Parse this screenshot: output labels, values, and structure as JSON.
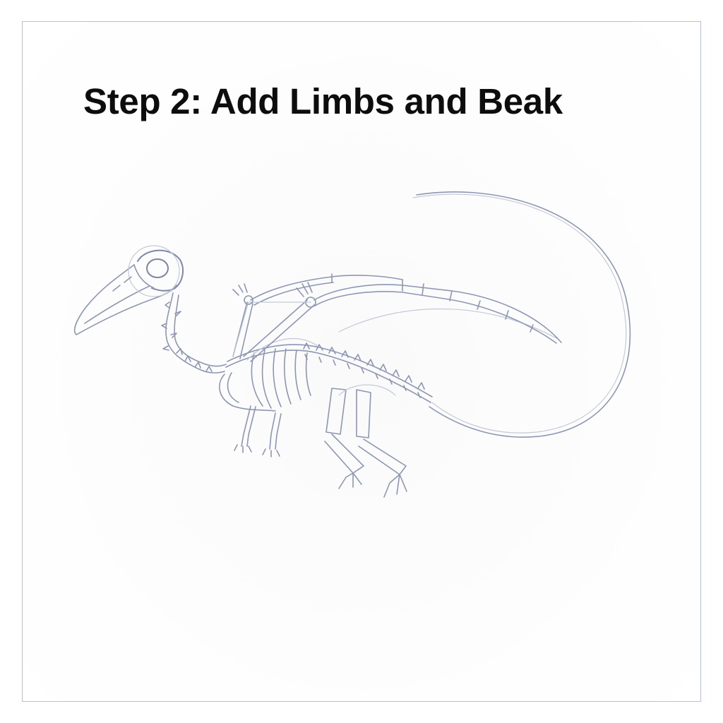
{
  "title": "Step 2: Add Limbs and Beak",
  "illustration": {
    "subject": "skeleton-sketch",
    "stroke_color": "#8d97b3",
    "frame_color": "#b9c0d2"
  }
}
